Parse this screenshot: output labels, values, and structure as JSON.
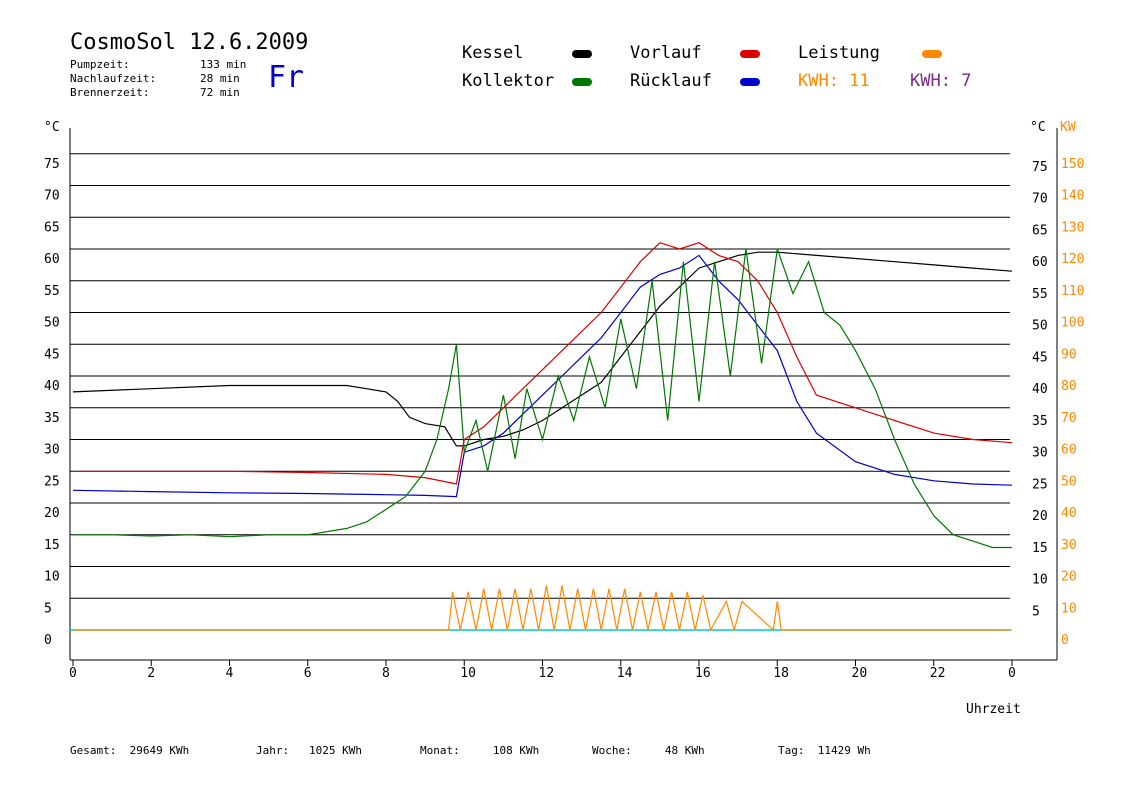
{
  "header": {
    "title": "CosmoSol 12.6.2009",
    "day": "Fr",
    "stats": [
      {
        "label": "Pumpzeit:",
        "value": "133 min"
      },
      {
        "label": "Nachlaufzeit:",
        "value": "28 min"
      },
      {
        "label": "Brennerzeit:",
        "value": "72 min"
      }
    ]
  },
  "legend": {
    "kessel": {
      "label": "Kessel",
      "color": "#000000"
    },
    "vorlauf": {
      "label": "Vorlauf",
      "color": "#dd0000"
    },
    "leistung": {
      "label": "Leistung",
      "color": "#ff8800"
    },
    "kollektor": {
      "label": "Kollektor",
      "color": "#007700"
    },
    "ruecklauf": {
      "label": "Rücklauf",
      "color": "#0000cc"
    },
    "kwh1": "KWH: 11",
    "kwh1_color": "#ff8800",
    "kwh2": "KWH: 7",
    "kwh2_color": "#7a2a8a"
  },
  "axes": {
    "left_unit": "°C",
    "right_unit": "°C",
    "right_unit2": "KW",
    "x_label": "Uhrzeit"
  },
  "footer": [
    {
      "label": "Gesamt:",
      "value": "29649 KWh"
    },
    {
      "label": "Jahr:",
      "value": "1025 KWh"
    },
    {
      "label": "Monat:",
      "value": "108 KWh"
    },
    {
      "label": "Woche:",
      "value": "48 KWh"
    },
    {
      "label": "Tag:",
      "value": "11429 Wh"
    }
  ],
  "chart_data": {
    "type": "line",
    "x_ticks": [
      "0",
      "2",
      "4",
      "6",
      "8",
      "10",
      "12",
      "14",
      "16",
      "18",
      "20",
      "22",
      "0"
    ],
    "x_tick_hours": [
      0,
      2,
      4,
      6,
      8,
      10,
      12,
      14,
      16,
      18,
      20,
      22,
      24
    ],
    "y_ticks": [
      0,
      5,
      10,
      15,
      20,
      25,
      30,
      35,
      40,
      45,
      50,
      55,
      60,
      65,
      70,
      75
    ],
    "y_right_ticks": [
      5,
      10,
      15,
      20,
      25,
      30,
      35,
      40,
      45,
      50,
      55,
      60,
      65,
      70,
      75
    ],
    "y_right_kw_ticks": [
      0,
      10,
      20,
      30,
      40,
      50,
      60,
      70,
      80,
      90,
      100,
      110,
      120,
      130,
      140,
      150
    ],
    "xlim": [
      0,
      24
    ],
    "ylim": [
      -5,
      80
    ],
    "series": [
      {
        "key": "kessel",
        "color": "#000000",
        "x": [
          0,
          2,
          4,
          6,
          7,
          7.5,
          8,
          8.3,
          8.6,
          9,
          9.5,
          9.8,
          10,
          10.5,
          11,
          11.5,
          12,
          12.5,
          13,
          13.5,
          14,
          14.5,
          15,
          15.5,
          16,
          16.5,
          17,
          17.5,
          18,
          19,
          20,
          21,
          22,
          23,
          24
        ],
        "y": [
          37.5,
          38,
          38.5,
          38.5,
          38.5,
          38,
          37.5,
          36,
          33.5,
          32.5,
          32,
          29,
          29,
          30,
          30.5,
          31.5,
          33,
          35,
          37,
          39,
          43,
          47,
          51,
          54,
          57,
          58,
          59,
          59.5,
          59.5,
          59,
          58.5,
          58,
          57.5,
          57,
          56.5
        ]
      },
      {
        "key": "vorlauf",
        "color": "#dd0000",
        "x": [
          0,
          2,
          4,
          6,
          8,
          9,
          9.8,
          10,
          10.5,
          11,
          11.5,
          12,
          12.5,
          13,
          13.5,
          14,
          14.5,
          15,
          15.5,
          16,
          16.5,
          17,
          17.5,
          18,
          18.5,
          19,
          20,
          21,
          22,
          23,
          24
        ],
        "y": [
          25,
          25,
          25,
          24.8,
          24.5,
          24,
          23,
          30,
          32,
          35,
          38,
          41,
          44,
          47,
          50,
          54,
          58,
          61,
          60,
          61,
          59,
          58,
          55,
          50,
          43,
          37,
          35,
          33,
          31,
          30,
          29.5
        ]
      },
      {
        "key": "ruecklauf",
        "color": "#0000cc",
        "x": [
          0,
          2,
          4,
          6,
          8,
          9,
          9.8,
          10,
          10.5,
          11,
          11.5,
          12,
          12.5,
          13,
          13.5,
          14,
          14.5,
          15,
          15.5,
          16,
          16.5,
          17,
          17.5,
          18,
          18.5,
          19,
          20,
          21,
          22,
          23,
          24
        ],
        "y": [
          22,
          21.8,
          21.6,
          21.5,
          21.3,
          21.2,
          21,
          28,
          29,
          31,
          34,
          37,
          40,
          43,
          46,
          50,
          54,
          56,
          57,
          59,
          55,
          52,
          48,
          44,
          36,
          31,
          26.5,
          24.5,
          23.5,
          23,
          22.8
        ]
      },
      {
        "key": "kollektor",
        "color": "#007700",
        "x": [
          0,
          1,
          2,
          3,
          4,
          5,
          6,
          7,
          7.5,
          8,
          8.5,
          9,
          9.3,
          9.6,
          9.8,
          10,
          10.3,
          10.6,
          11,
          11.3,
          11.6,
          12,
          12.4,
          12.8,
          13.2,
          13.6,
          14,
          14.4,
          14.8,
          15.2,
          15.6,
          16,
          16.4,
          16.8,
          17.2,
          17.6,
          18,
          18.4,
          18.8,
          19.2,
          19.6,
          20,
          20.5,
          21,
          21.5,
          22,
          22.5,
          23,
          23.5,
          24
        ],
        "y": [
          15,
          15,
          14.8,
          15,
          14.7,
          15,
          15,
          16,
          17,
          19,
          21,
          25,
          30,
          38,
          45,
          28,
          33,
          25,
          37,
          27,
          38,
          30,
          40,
          33,
          43,
          35,
          49,
          38,
          55,
          33,
          58,
          36,
          58,
          40,
          60,
          42,
          60,
          53,
          58,
          50,
          48,
          44,
          38,
          30,
          23,
          18,
          15,
          14,
          13,
          13
        ]
      },
      {
        "key": "leistung",
        "color": "#ff8800",
        "x": [
          0,
          9.6,
          9.7,
          9.9,
          10.1,
          10.3,
          10.5,
          10.7,
          10.9,
          11.1,
          11.3,
          11.5,
          11.7,
          11.9,
          12.1,
          12.3,
          12.5,
          12.7,
          12.9,
          13.1,
          13.3,
          13.5,
          13.7,
          13.9,
          14.1,
          14.3,
          14.5,
          14.7,
          14.9,
          15.1,
          15.3,
          15.5,
          15.7,
          15.9,
          16.1,
          16.3,
          16.7,
          16.9,
          17.1,
          17.9,
          18.0,
          18.1,
          24
        ],
        "y": [
          0,
          0,
          6,
          0,
          6,
          0,
          6.5,
          0,
          6.5,
          0,
          6.5,
          0,
          6.5,
          0,
          7,
          0,
          7,
          0,
          6.5,
          0,
          6.5,
          0,
          6.5,
          0,
          6.5,
          0,
          6,
          0,
          6,
          0,
          6,
          0,
          6,
          0,
          5.5,
          0,
          4.5,
          0,
          4.5,
          0,
          4.5,
          0,
          0
        ]
      }
    ]
  }
}
